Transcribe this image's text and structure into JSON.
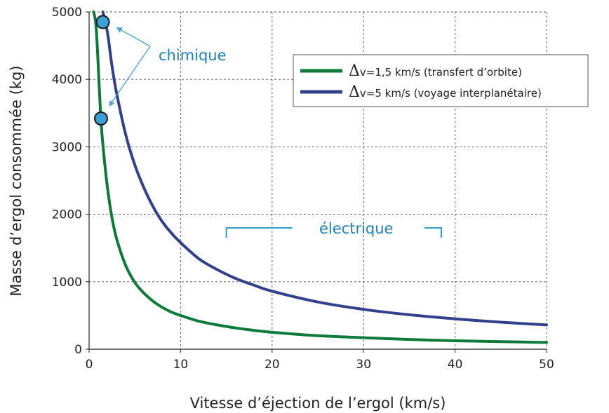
{
  "chart_data": {
    "type": "line",
    "xlabel": "Vitesse d’éjection de l’ergol (km/s)",
    "ylabel": "Masse d’ergol consommée (kg)",
    "xlim": [
      0,
      50
    ],
    "ylim": [
      0,
      5000
    ],
    "xticks": [
      0,
      10,
      20,
      30,
      40,
      50
    ],
    "yticks": [
      0,
      1000,
      2000,
      3000,
      4000,
      5000
    ],
    "grid": true,
    "legend_position": "top-right",
    "series": [
      {
        "legend_symbol": "Δ",
        "legend_rest": "v=1,5 km/s (transfert d’orbite)",
        "color": "#0e7a3a",
        "x": [
          0.5,
          0.75,
          1,
          1.25,
          1.5,
          2,
          2.5,
          3,
          4,
          5,
          6,
          7,
          8,
          9,
          10,
          12,
          14,
          16,
          18,
          20,
          25,
          30,
          35,
          40,
          45,
          50
        ],
        "y": [
          5000,
          4800,
          4200,
          3500,
          3040,
          2400,
          1950,
          1640,
          1240,
          990,
          830,
          710,
          620,
          550,
          500,
          415,
          360,
          315,
          280,
          250,
          200,
          170,
          145,
          125,
          112,
          100
        ]
      },
      {
        "legend_symbol": "Δ",
        "legend_rest": "v=5 km/s (voyage interplanétaire)",
        "color": "#33418c",
        "x": [
          1.5,
          2,
          2.5,
          3,
          4,
          5,
          6,
          7,
          8,
          9,
          10,
          12,
          14,
          16,
          18,
          20,
          25,
          30,
          35,
          40,
          45,
          50
        ],
        "y": [
          5000,
          4700,
          4200,
          3800,
          3180,
          2730,
          2390,
          2110,
          1890,
          1720,
          1580,
          1340,
          1180,
          1050,
          950,
          860,
          700,
          590,
          510,
          450,
          400,
          360
        ]
      }
    ],
    "points": [
      {
        "x": 1.5,
        "y": 4850,
        "color": "#3aa0d5"
      },
      {
        "x": 1.3,
        "y": 3420,
        "color": "#3aa0d5"
      }
    ],
    "annotations": [
      {
        "text": "chimique",
        "color": "#1f7fb6"
      },
      {
        "text": "électrique",
        "color": "#1f7fb6",
        "x_range": [
          15,
          38.5
        ]
      }
    ]
  }
}
